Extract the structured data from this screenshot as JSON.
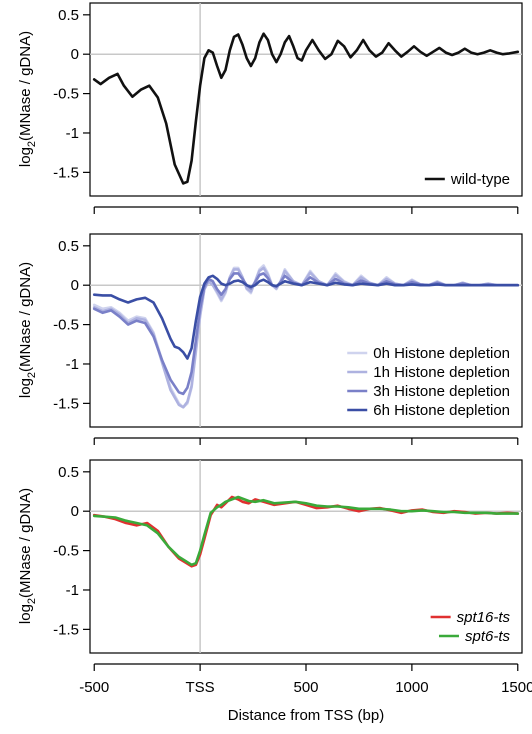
{
  "chart_data": [
    {
      "type": "line",
      "ylabel_prefix": "log",
      "ylabel_sub": "2",
      "ylabel_rest": "(MNase / gDNA)",
      "ylim": [
        -1.8,
        0.65
      ],
      "xlim": [
        -520,
        1520
      ],
      "yticks": [
        {
          "v": 0.5,
          "label": "0.5"
        },
        {
          "v": 0,
          "label": "0"
        },
        {
          "v": -0.5,
          "label": "-0.5"
        },
        {
          "v": -1,
          "label": "-1"
        },
        {
          "v": -1.5,
          "label": "-1.5"
        }
      ],
      "legend_position": "bottom-right",
      "series": [
        {
          "name": "wild-type",
          "color": "#111111",
          "x": [
            -500,
            -470,
            -430,
            -390,
            -360,
            -320,
            -280,
            -240,
            -200,
            -160,
            -120,
            -80,
            -60,
            -40,
            -20,
            0,
            20,
            40,
            60,
            80,
            100,
            120,
            140,
            160,
            180,
            200,
            220,
            240,
            260,
            280,
            300,
            320,
            340,
            360,
            380,
            400,
            420,
            440,
            460,
            480,
            500,
            530,
            560,
            590,
            620,
            650,
            680,
            710,
            740,
            770,
            800,
            830,
            860,
            890,
            920,
            950,
            980,
            1010,
            1040,
            1070,
            1100,
            1130,
            1160,
            1190,
            1220,
            1250,
            1280,
            1310,
            1340,
            1370,
            1400,
            1430,
            1460,
            1500
          ],
          "y": [
            -0.32,
            -0.38,
            -0.3,
            -0.25,
            -0.4,
            -0.54,
            -0.45,
            -0.4,
            -0.55,
            -0.88,
            -1.4,
            -1.64,
            -1.62,
            -1.35,
            -0.85,
            -0.4,
            -0.05,
            0.05,
            0.02,
            -0.15,
            -0.3,
            -0.2,
            0.05,
            0.22,
            0.25,
            0.12,
            -0.05,
            -0.15,
            -0.05,
            0.15,
            0.26,
            0.18,
            0.0,
            -0.1,
            0.0,
            0.15,
            0.23,
            0.1,
            -0.05,
            -0.08,
            0.05,
            0.18,
            0.05,
            -0.06,
            0.0,
            0.17,
            0.1,
            -0.04,
            0.05,
            0.18,
            0.05,
            -0.03,
            0.02,
            0.14,
            0.05,
            -0.03,
            0.03,
            0.1,
            0.03,
            -0.02,
            0.03,
            0.08,
            0.02,
            -0.01,
            0.02,
            0.07,
            0.02,
            0.0,
            0.02,
            0.05,
            0.02,
            0.0,
            0.01,
            0.03
          ]
        }
      ]
    },
    {
      "type": "line",
      "ylabel_prefix": "log",
      "ylabel_sub": "2",
      "ylabel_rest": "(MNase / gDNA)",
      "ylim": [
        -1.8,
        0.65
      ],
      "xlim": [
        -520,
        1520
      ],
      "yticks": [
        {
          "v": 0.5,
          "label": "0.5"
        },
        {
          "v": 0,
          "label": "0"
        },
        {
          "v": -0.5,
          "label": "-0.5"
        },
        {
          "v": -1,
          "label": "-1"
        },
        {
          "v": -1.5,
          "label": "-1.5"
        }
      ],
      "legend_position": "bottom-right",
      "series": [
        {
          "name": "0h Histone depletion",
          "color": "#cfd3ee",
          "x": [
            -500,
            -460,
            -420,
            -380,
            -340,
            -300,
            -260,
            -220,
            -180,
            -140,
            -100,
            -80,
            -60,
            -40,
            -20,
            0,
            20,
            40,
            60,
            80,
            100,
            120,
            140,
            160,
            180,
            200,
            220,
            240,
            260,
            280,
            300,
            320,
            340,
            360,
            380,
            400,
            440,
            480,
            520,
            560,
            600,
            640,
            680,
            720,
            760,
            800,
            840,
            880,
            920,
            960,
            1000,
            1040,
            1080,
            1120,
            1160,
            1200,
            1240,
            1280,
            1320,
            1360,
            1400,
            1440,
            1500
          ],
          "y": [
            -0.25,
            -0.3,
            -0.28,
            -0.35,
            -0.45,
            -0.4,
            -0.42,
            -0.6,
            -0.95,
            -1.3,
            -1.5,
            -1.55,
            -1.5,
            -1.3,
            -0.85,
            -0.4,
            -0.05,
            0.05,
            0.0,
            -0.1,
            -0.2,
            -0.1,
            0.1,
            0.22,
            0.22,
            0.1,
            -0.05,
            -0.1,
            0.05,
            0.2,
            0.25,
            0.15,
            0.0,
            -0.05,
            0.05,
            0.2,
            0.05,
            0.0,
            0.18,
            0.05,
            0.0,
            0.15,
            0.05,
            0.0,
            0.12,
            0.03,
            0.0,
            0.1,
            0.02,
            0.0,
            0.07,
            0.01,
            0.0,
            0.05,
            0.0,
            0.0,
            0.03,
            0.0,
            0.0,
            0.02,
            0.0,
            0.0,
            0.0
          ]
        },
        {
          "name": "1h Histone depletion",
          "color": "#aeb2e0",
          "x": [
            -500,
            -460,
            -420,
            -380,
            -340,
            -300,
            -260,
            -220,
            -180,
            -140,
            -100,
            -80,
            -60,
            -40,
            -20,
            0,
            20,
            40,
            60,
            80,
            100,
            120,
            140,
            160,
            180,
            200,
            220,
            240,
            260,
            280,
            300,
            320,
            340,
            360,
            380,
            400,
            440,
            480,
            520,
            560,
            600,
            640,
            680,
            720,
            760,
            800,
            840,
            880,
            920,
            960,
            1000,
            1040,
            1080,
            1120,
            1160,
            1200,
            1240,
            1280,
            1320,
            1360,
            1400,
            1440,
            1500
          ],
          "y": [
            -0.28,
            -0.33,
            -0.3,
            -0.37,
            -0.48,
            -0.42,
            -0.44,
            -0.62,
            -0.98,
            -1.33,
            -1.52,
            -1.55,
            -1.48,
            -1.28,
            -0.82,
            -0.38,
            -0.05,
            0.05,
            0.0,
            -0.08,
            -0.18,
            -0.08,
            0.1,
            0.2,
            0.2,
            0.1,
            -0.04,
            -0.08,
            0.05,
            0.18,
            0.22,
            0.13,
            0.0,
            -0.04,
            0.05,
            0.18,
            0.05,
            0.0,
            0.16,
            0.05,
            0.0,
            0.13,
            0.04,
            0.0,
            0.1,
            0.03,
            0.0,
            0.08,
            0.02,
            0.0,
            0.06,
            0.01,
            0.0,
            0.04,
            0.0,
            0.0,
            0.03,
            0.0,
            0.0,
            0.02,
            0.0,
            0.0,
            0.0
          ]
        },
        {
          "name": "3h Histone depletion",
          "color": "#7a80c8",
          "x": [
            -500,
            -460,
            -420,
            -380,
            -340,
            -300,
            -260,
            -220,
            -180,
            -140,
            -100,
            -80,
            -60,
            -40,
            -20,
            0,
            20,
            40,
            60,
            80,
            100,
            120,
            140,
            160,
            180,
            200,
            220,
            240,
            260,
            280,
            300,
            320,
            340,
            360,
            380,
            400,
            440,
            480,
            520,
            560,
            600,
            640,
            680,
            720,
            760,
            800,
            840,
            880,
            920,
            960,
            1000,
            1040,
            1080,
            1120,
            1160,
            1200,
            1240,
            1280,
            1320,
            1360,
            1400,
            1440,
            1500
          ],
          "y": [
            -0.3,
            -0.35,
            -0.32,
            -0.4,
            -0.5,
            -0.45,
            -0.48,
            -0.65,
            -0.95,
            -1.2,
            -1.36,
            -1.38,
            -1.3,
            -1.1,
            -0.7,
            -0.3,
            -0.02,
            0.08,
            0.05,
            -0.05,
            -0.12,
            -0.05,
            0.08,
            0.15,
            0.15,
            0.08,
            0.0,
            -0.04,
            0.04,
            0.13,
            0.15,
            0.09,
            0.0,
            -0.02,
            0.04,
            0.12,
            0.03,
            0.0,
            0.1,
            0.03,
            0.0,
            0.08,
            0.02,
            0.0,
            0.06,
            0.02,
            0.0,
            0.05,
            0.01,
            0.0,
            0.04,
            0.01,
            0.0,
            0.03,
            0.0,
            0.0,
            0.02,
            0.0,
            0.0,
            0.01,
            0.0,
            0.0,
            0.0
          ]
        },
        {
          "name": "6h Histone depletion",
          "color": "#3a4ea5",
          "x": [
            -500,
            -460,
            -420,
            -380,
            -340,
            -300,
            -260,
            -220,
            -180,
            -140,
            -120,
            -100,
            -80,
            -60,
            -40,
            -20,
            0,
            20,
            40,
            60,
            80,
            100,
            120,
            140,
            160,
            180,
            200,
            220,
            240,
            260,
            280,
            300,
            320,
            340,
            360,
            380,
            400,
            440,
            480,
            520,
            560,
            600,
            640,
            680,
            720,
            760,
            800,
            840,
            880,
            920,
            960,
            1000,
            1040,
            1080,
            1120,
            1160,
            1200,
            1240,
            1280,
            1320,
            1360,
            1400,
            1440,
            1500
          ],
          "y": [
            -0.12,
            -0.13,
            -0.13,
            -0.18,
            -0.22,
            -0.18,
            -0.16,
            -0.22,
            -0.42,
            -0.68,
            -0.78,
            -0.8,
            -0.85,
            -0.93,
            -0.8,
            -0.45,
            -0.15,
            0.02,
            0.1,
            0.12,
            0.08,
            0.02,
            0.0,
            0.02,
            0.05,
            0.06,
            0.04,
            0.0,
            -0.02,
            0.0,
            0.05,
            0.07,
            0.04,
            0.0,
            -0.01,
            0.02,
            0.05,
            0.02,
            0.0,
            0.04,
            0.02,
            0.0,
            0.03,
            0.01,
            0.0,
            0.02,
            0.01,
            0.0,
            0.02,
            0.0,
            0.0,
            0.01,
            0.0,
            0.0,
            0.01,
            0.0,
            0.0,
            0.0,
            0.0,
            0.0,
            0.0,
            0.0,
            0.0,
            0.0
          ]
        }
      ]
    },
    {
      "type": "line",
      "ylabel_prefix": "log",
      "ylabel_sub": "2",
      "ylabel_rest": "(MNase / gDNA)",
      "ylim": [
        -1.8,
        0.65
      ],
      "xlim": [
        -520,
        1520
      ],
      "yticks": [
        {
          "v": 0.5,
          "label": "0.5"
        },
        {
          "v": 0,
          "label": "0"
        },
        {
          "v": -0.5,
          "label": "-0.5"
        },
        {
          "v": -1,
          "label": "-1"
        },
        {
          "v": -1.5,
          "label": "-1.5"
        }
      ],
      "xticks": [
        {
          "v": -500,
          "label": "-500"
        },
        {
          "v": 0,
          "label": "TSS"
        },
        {
          "v": 500,
          "label": "500"
        },
        {
          "v": 1000,
          "label": "1000"
        },
        {
          "v": 1500,
          "label": "1500"
        }
      ],
      "xlabel": "Distance from TSS (bp)",
      "legend_position": "bottom-right",
      "series": [
        {
          "name": "spt16-ts",
          "italic": true,
          "color": "#e03030",
          "x": [
            -500,
            -450,
            -400,
            -350,
            -300,
            -250,
            -200,
            -150,
            -100,
            -70,
            -40,
            -20,
            0,
            20,
            50,
            80,
            100,
            120,
            150,
            180,
            200,
            230,
            260,
            300,
            350,
            400,
            450,
            500,
            550,
            600,
            650,
            700,
            750,
            800,
            850,
            900,
            950,
            1000,
            1050,
            1100,
            1150,
            1200,
            1250,
            1300,
            1350,
            1400,
            1450,
            1500
          ],
          "y": [
            -0.05,
            -0.07,
            -0.1,
            -0.15,
            -0.18,
            -0.15,
            -0.25,
            -0.45,
            -0.6,
            -0.65,
            -0.7,
            -0.68,
            -0.55,
            -0.35,
            -0.05,
            0.08,
            0.05,
            0.1,
            0.18,
            0.15,
            0.12,
            0.1,
            0.15,
            0.12,
            0.08,
            0.1,
            0.12,
            0.08,
            0.04,
            0.05,
            0.07,
            0.03,
            0.0,
            0.03,
            0.04,
            0.01,
            -0.02,
            0.01,
            0.02,
            -0.01,
            -0.02,
            0.0,
            -0.01,
            -0.03,
            -0.02,
            -0.03,
            -0.02,
            -0.03
          ]
        },
        {
          "name": "spt6-ts",
          "italic": true,
          "color": "#3aaa3a",
          "x": [
            -500,
            -450,
            -400,
            -350,
            -300,
            -250,
            -200,
            -150,
            -100,
            -70,
            -40,
            -20,
            0,
            20,
            50,
            80,
            100,
            120,
            150,
            180,
            200,
            230,
            260,
            300,
            350,
            400,
            450,
            500,
            550,
            600,
            650,
            700,
            750,
            800,
            850,
            900,
            950,
            1000,
            1050,
            1100,
            1150,
            1200,
            1250,
            1300,
            1350,
            1400,
            1450,
            1500
          ],
          "y": [
            -0.06,
            -0.07,
            -0.08,
            -0.12,
            -0.15,
            -0.18,
            -0.28,
            -0.45,
            -0.58,
            -0.63,
            -0.68,
            -0.66,
            -0.5,
            -0.3,
            -0.02,
            0.05,
            0.08,
            0.12,
            0.15,
            0.18,
            0.16,
            0.13,
            0.12,
            0.14,
            0.1,
            0.11,
            0.12,
            0.1,
            0.07,
            0.06,
            0.06,
            0.05,
            0.03,
            0.03,
            0.03,
            0.02,
            0.0,
            0.0,
            0.01,
            0.0,
            -0.01,
            -0.01,
            -0.02,
            -0.02,
            -0.02,
            -0.03,
            -0.03,
            -0.03
          ]
        }
      ]
    }
  ]
}
